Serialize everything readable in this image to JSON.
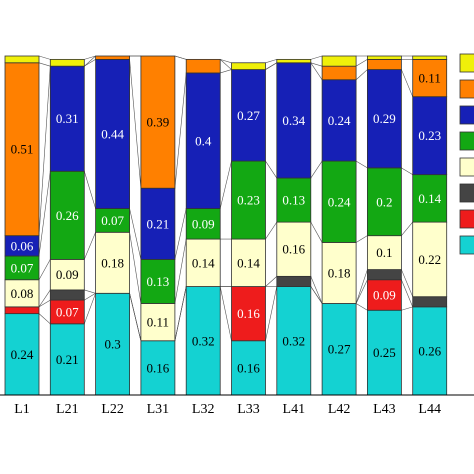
{
  "chart_data": {
    "type": "bar",
    "stacked": true,
    "categories": [
      "L1",
      "L21",
      "L22",
      "L31",
      "L32",
      "L33",
      "L41",
      "L42",
      "L43",
      "L44"
    ],
    "ylim": [
      0,
      1
    ],
    "grid": false,
    "legend_placement": "right, partially cropped",
    "legend_entries_visible": false,
    "series": [
      {
        "color": "#14d2d2",
        "values": [
          0.24,
          0.21,
          0.3,
          0.16,
          0.32,
          0.16,
          0.32,
          0.27,
          0.25,
          0.26
        ],
        "labels": [
          "0.24",
          "0.21",
          "0.3",
          "0.16",
          "0.32",
          "0.16",
          "0.32",
          "0.27",
          "0.25",
          "0.26"
        ]
      },
      {
        "color": "#ee1c1c",
        "values": [
          0.02,
          0.07,
          0.0,
          0.0,
          0.0,
          0.16,
          0.0,
          0.0,
          0.09,
          0.0
        ],
        "labels": [
          "",
          "0.07",
          "",
          "",
          "",
          "0.16",
          "",
          "",
          "0.09",
          ""
        ]
      },
      {
        "color": "#444444",
        "values": [
          0.0,
          0.03,
          0.0,
          0.0,
          0.0,
          0.0,
          0.03,
          0.0,
          0.03,
          0.03
        ],
        "labels": [
          "",
          "",
          "",
          "",
          "",
          "",
          "",
          "",
          "",
          ""
        ]
      },
      {
        "color": "#ffffcc",
        "values": [
          0.08,
          0.09,
          0.18,
          0.11,
          0.14,
          0.14,
          0.16,
          0.18,
          0.1,
          0.22
        ],
        "labels": [
          "0.08",
          "0.09",
          "0.18",
          "0.11",
          "0.14",
          "0.14",
          "0.16",
          "0.18",
          "0.1",
          "0.22"
        ]
      },
      {
        "color": "#13a813",
        "values": [
          0.07,
          0.26,
          0.07,
          0.13,
          0.09,
          0.23,
          0.13,
          0.24,
          0.2,
          0.14
        ],
        "labels": [
          "0.07",
          "0.26",
          "0.07",
          "0.13",
          "0.09",
          "0.23",
          "0.13",
          "0.24",
          "0.2",
          "0.14"
        ]
      },
      {
        "color": "#1620b6",
        "values": [
          0.06,
          0.31,
          0.44,
          0.21,
          0.4,
          0.27,
          0.34,
          0.24,
          0.29,
          0.23
        ],
        "labels": [
          "0.06",
          "0.31",
          "0.44",
          "0.21",
          "0.4",
          "0.27",
          "0.34",
          "0.24",
          "0.29",
          "0.23"
        ]
      },
      {
        "color": "#ff8000",
        "values": [
          0.51,
          0.0,
          0.01,
          0.39,
          0.04,
          0.0,
          0.0,
          0.04,
          0.03,
          0.11
        ],
        "labels": [
          "0.51",
          "",
          "",
          "0.39",
          "",
          "",
          "",
          "",
          "",
          "0.11"
        ]
      },
      {
        "color": "#f0f00a",
        "values": [
          0.02,
          0.02,
          0.0,
          0.0,
          0.0,
          0.02,
          0.01,
          0.03,
          0.01,
          0.01
        ],
        "labels": [
          "",
          "",
          "",
          "",
          "",
          "",
          "",
          "",
          "",
          ""
        ]
      }
    ]
  }
}
